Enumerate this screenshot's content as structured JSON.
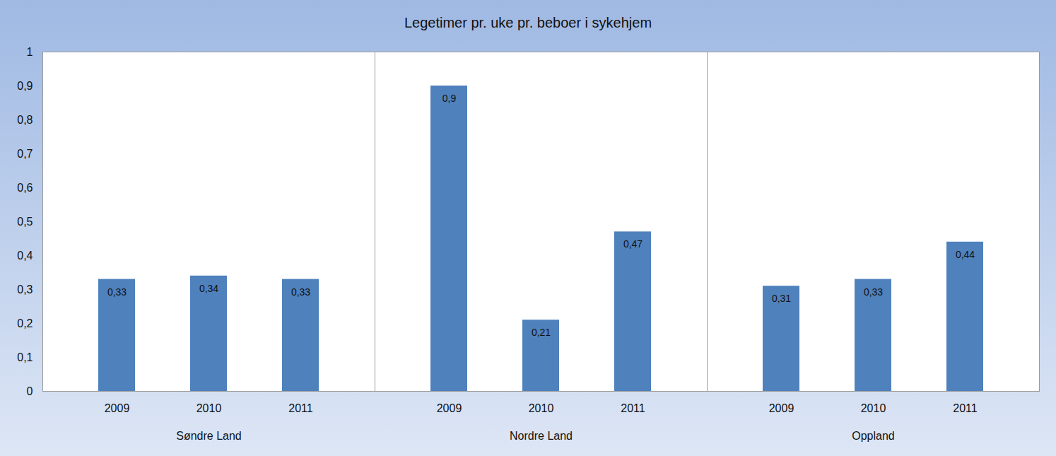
{
  "chart_data": {
    "type": "bar",
    "title": "Legetimer pr. uke pr. beboer i sykehjem",
    "color": "#4f81bd",
    "groups": [
      {
        "name": "Søndre Land",
        "categories": [
          "2009",
          "2010",
          "2011"
        ],
        "values": [
          0.33,
          0.34,
          0.33
        ],
        "value_labels": [
          "0,33",
          "0,34",
          "0,33"
        ]
      },
      {
        "name": "Nordre Land",
        "categories": [
          "2009",
          "2010",
          "2011"
        ],
        "values": [
          0.9,
          0.21,
          0.47
        ],
        "value_labels": [
          "0,9",
          "0,21",
          "0,47"
        ]
      },
      {
        "name": "Oppland",
        "categories": [
          "2009",
          "2010",
          "2011"
        ],
        "values": [
          0.31,
          0.33,
          0.44
        ],
        "value_labels": [
          "0,31",
          "0,33",
          "0,44"
        ]
      }
    ],
    "ylim": [
      0,
      1
    ],
    "yticks": [
      0,
      {
        "value": 0.1,
        "label": "0,1"
      },
      {
        "value": 0.2,
        "label": "0,2"
      },
      {
        "value": 0.3,
        "label": "0,3"
      },
      {
        "value": 0.4,
        "label": "0,4"
      },
      {
        "value": 0.5,
        "label": "0,5"
      },
      {
        "value": 0.6,
        "label": "0,6"
      },
      {
        "value": 0.7,
        "label": "0,7"
      },
      {
        "value": 0.8,
        "label": "0,8"
      },
      {
        "value": 0.9,
        "label": "0,9"
      },
      1
    ],
    "grid": true,
    "data_labels": true
  }
}
